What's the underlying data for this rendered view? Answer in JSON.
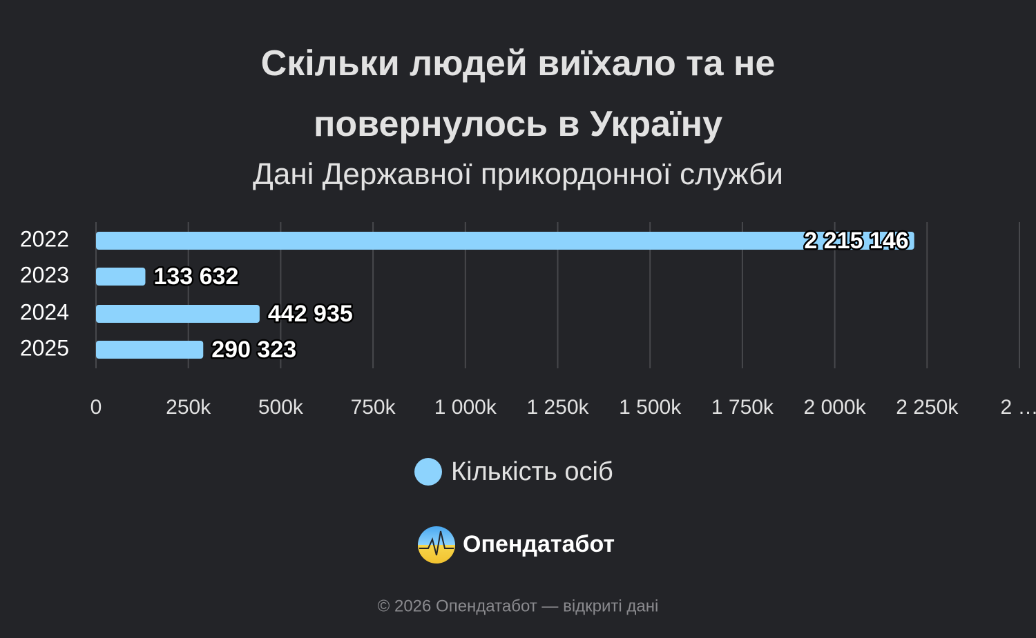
{
  "chart_data": {
    "type": "barh",
    "title": "Скільки людей виїхало та не повернулось в Україну",
    "subtitle": "Дані Державної прикордонної служби",
    "categories": [
      "2022",
      "2023",
      "2024",
      "2025"
    ],
    "series": [
      {
        "name": "Кількість осіб",
        "color": "#8dd3fd",
        "values": [
          2215146,
          133632,
          442935,
          290323
        ],
        "value_labels": [
          "2 215 146",
          "133 632",
          "442 935",
          "290 323"
        ]
      }
    ],
    "xlim": [
      0,
      2500000
    ],
    "xticks": [
      0,
      {
        "value": 250000,
        "label": "250k"
      },
      {
        "value": 500000,
        "label": "500k"
      },
      {
        "value": 750000,
        "label": "750k"
      },
      {
        "value": 1000000,
        "label": "1 000k"
      },
      {
        "value": 1250000,
        "label": "1 250k"
      },
      {
        "value": 1500000,
        "label": "1 500k"
      },
      {
        "value": 1750000,
        "label": "1 750k"
      },
      {
        "value": 2000000,
        "label": "2 000k"
      },
      {
        "value": 2250000,
        "label": "2 250k"
      },
      {
        "value": 2500000,
        "label": "2 …"
      }
    ],
    "grid": true,
    "legend": "bottom"
  },
  "logo": "Опендатабот",
  "footer": "© 2026 Опендатабот — відкриті дані"
}
